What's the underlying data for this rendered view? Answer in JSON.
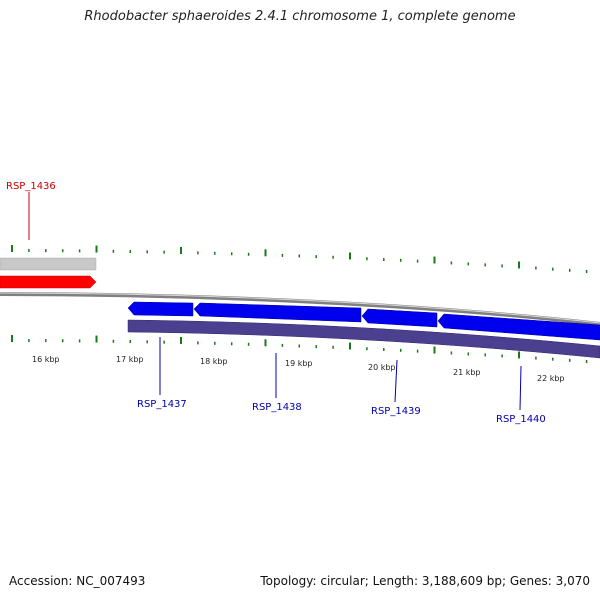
{
  "title": "Rhodobacter sphaeroides 2.4.1 chromosome 1, complete genome",
  "footer": {
    "accession": "Accession: NC_007493",
    "summary": "Topology: circular; Length: 3,188,609 bp; Genes: 3,070"
  },
  "scale": {
    "labels": [
      "16 kbp",
      "17 kbp",
      "18 kbp",
      "19 kbp",
      "20 kbp",
      "21 kbp",
      "22 kbp"
    ]
  },
  "genes": [
    {
      "name": "RSP_1436",
      "strand": "forward",
      "color": "#cc0000"
    },
    {
      "name": "RSP_1437",
      "strand": "reverse",
      "color": "#0000aa"
    },
    {
      "name": "RSP_1438",
      "strand": "reverse",
      "color": "#0000aa"
    },
    {
      "name": "RSP_1439",
      "strand": "reverse",
      "color": "#0000aa"
    },
    {
      "name": "RSP_1440",
      "strand": "reverse",
      "color": "#0000aa"
    }
  ],
  "colors": {
    "forward_gene": "#ff0000",
    "reverse_gene": "#0000ee",
    "backbone": "#808080",
    "forward_track": "#c8c8c8",
    "reverse_track": "#4b3f8f",
    "ticks": "#1a7a1a"
  }
}
